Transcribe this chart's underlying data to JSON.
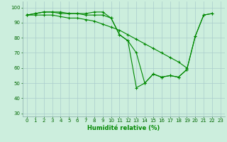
{
  "xlabel": "Humidité relative (%)",
  "bg_color": "#cceedd",
  "grid_color": "#aacccc",
  "line_color": "#008800",
  "marker": "+",
  "xlim": [
    -0.5,
    23.5
  ],
  "ylim": [
    28,
    104
  ],
  "yticks": [
    30,
    40,
    50,
    60,
    70,
    80,
    90,
    100
  ],
  "xticks": [
    0,
    1,
    2,
    3,
    4,
    5,
    6,
    7,
    8,
    9,
    10,
    11,
    12,
    13,
    14,
    15,
    16,
    17,
    18,
    19,
    20,
    21,
    22,
    23
  ],
  "series": [
    {
      "x": [
        0,
        1,
        2,
        3,
        4,
        5,
        6,
        7,
        8,
        9,
        10,
        11,
        12,
        13,
        14,
        15,
        16,
        17,
        18,
        19,
        20,
        21,
        22
      ],
      "y": [
        95,
        96,
        97,
        97,
        97,
        96,
        96,
        96,
        97,
        97,
        93,
        82,
        78,
        70,
        50,
        56,
        54,
        55,
        54,
        59,
        81,
        95,
        96
      ]
    },
    {
      "x": [
        0,
        1,
        2,
        3,
        4,
        5,
        6,
        7,
        8,
        9,
        10,
        11,
        12,
        13,
        14,
        15,
        16,
        17,
        18,
        19,
        20,
        21,
        22
      ],
      "y": [
        95,
        96,
        97,
        97,
        96,
        96,
        96,
        95,
        95,
        95,
        93,
        82,
        78,
        47,
        50,
        56,
        54,
        55,
        54,
        59,
        81,
        95,
        96
      ]
    },
    {
      "x": [
        0,
        1,
        2,
        3,
        4,
        5,
        6,
        7,
        8,
        9,
        10,
        11,
        12,
        13,
        14,
        15,
        16,
        17,
        18,
        19
      ],
      "y": [
        95,
        95,
        95,
        95,
        94,
        93,
        93,
        92,
        91,
        89,
        87,
        85,
        82,
        79,
        76,
        73,
        70,
        67,
        64,
        60
      ]
    }
  ]
}
